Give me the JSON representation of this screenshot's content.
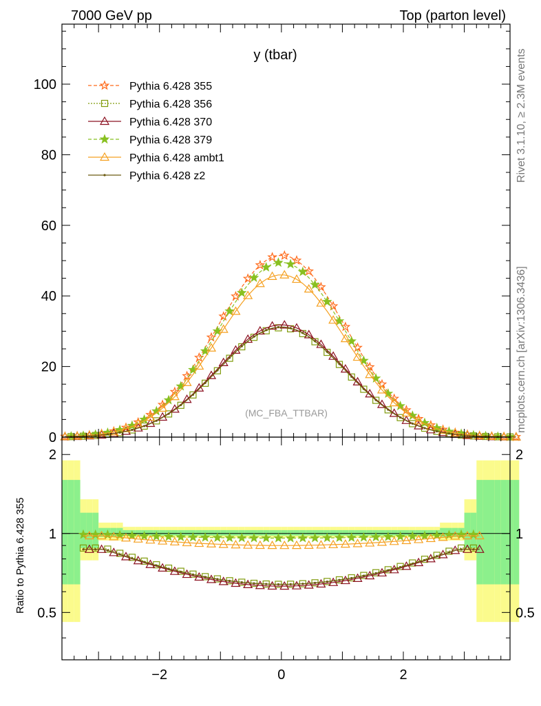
{
  "header": {
    "left": "7000 GeV pp",
    "right": "Top (parton level)"
  },
  "sidebar": {
    "rivet": "Rivet 3.1.10, ≥ 2.3M events",
    "mcplots": "mcplots.cern.ch [arXiv:1306.3436]"
  },
  "chart_data": [
    {
      "type": "line",
      "title": "y (tbar)",
      "watermark": "(MC_FBA_TTBAR)",
      "xlabel": "",
      "ylabel": "",
      "xlim": [
        -3.6,
        3.75
      ],
      "ylim": [
        0,
        117
      ],
      "xticks": [
        "-2",
        "0",
        "2"
      ],
      "yticks": [
        "0",
        "20",
        "40",
        "60",
        "80",
        "100"
      ],
      "legend_position": "top-left",
      "series": [
        {
          "name": "Pythia 6.428 355",
          "color": "#ff6a1a",
          "marker": "star-open",
          "dash": "5,3",
          "peak": 51.5
        },
        {
          "name": "Pythia 6.428 356",
          "color": "#7f9a0a",
          "marker": "square-open",
          "dash": "2,2",
          "peak": 31.0
        },
        {
          "name": "Pythia 6.428 370",
          "color": "#8b1020",
          "marker": "triangle-open",
          "dash": "",
          "peak": 31.8
        },
        {
          "name": "Pythia 6.428 379",
          "color": "#88c020",
          "marker": "star-filled",
          "dash": "5,3",
          "peak": 49.5
        },
        {
          "name": "Pythia 6.428 ambt1",
          "color": "#f5a020",
          "marker": "triangle-open",
          "dash": "",
          "peak": 46.0
        },
        {
          "name": "Pythia 6.428 z2",
          "color": "#6b5a10",
          "marker": "dot",
          "dash": "",
          "peak": 31.2
        }
      ]
    },
    {
      "type": "line",
      "title": "",
      "xlabel": "",
      "ylabel": "Ratio to Pythia 6.428 355",
      "xlim": [
        -3.6,
        3.75
      ],
      "ylim": [
        0.33,
        2.33
      ],
      "xticks": [
        "-2",
        "0",
        "2"
      ],
      "yticks": [
        "0.5",
        "1",
        "2"
      ],
      "reference": 1,
      "series": [
        {
          "name": "Pythia 6.428 356",
          "center": 0.64,
          "edge": 0.88
        },
        {
          "name": "Pythia 6.428 370",
          "center": 0.63,
          "edge": 0.87
        },
        {
          "name": "Pythia 6.428 379",
          "center": 0.96,
          "edge": 0.99
        },
        {
          "name": "Pythia 6.428 ambt1",
          "center": 0.9,
          "edge": 0.98
        },
        {
          "name": "Pythia 6.428 z2",
          "center": 0.64,
          "edge": 0.87
        }
      ]
    }
  ]
}
